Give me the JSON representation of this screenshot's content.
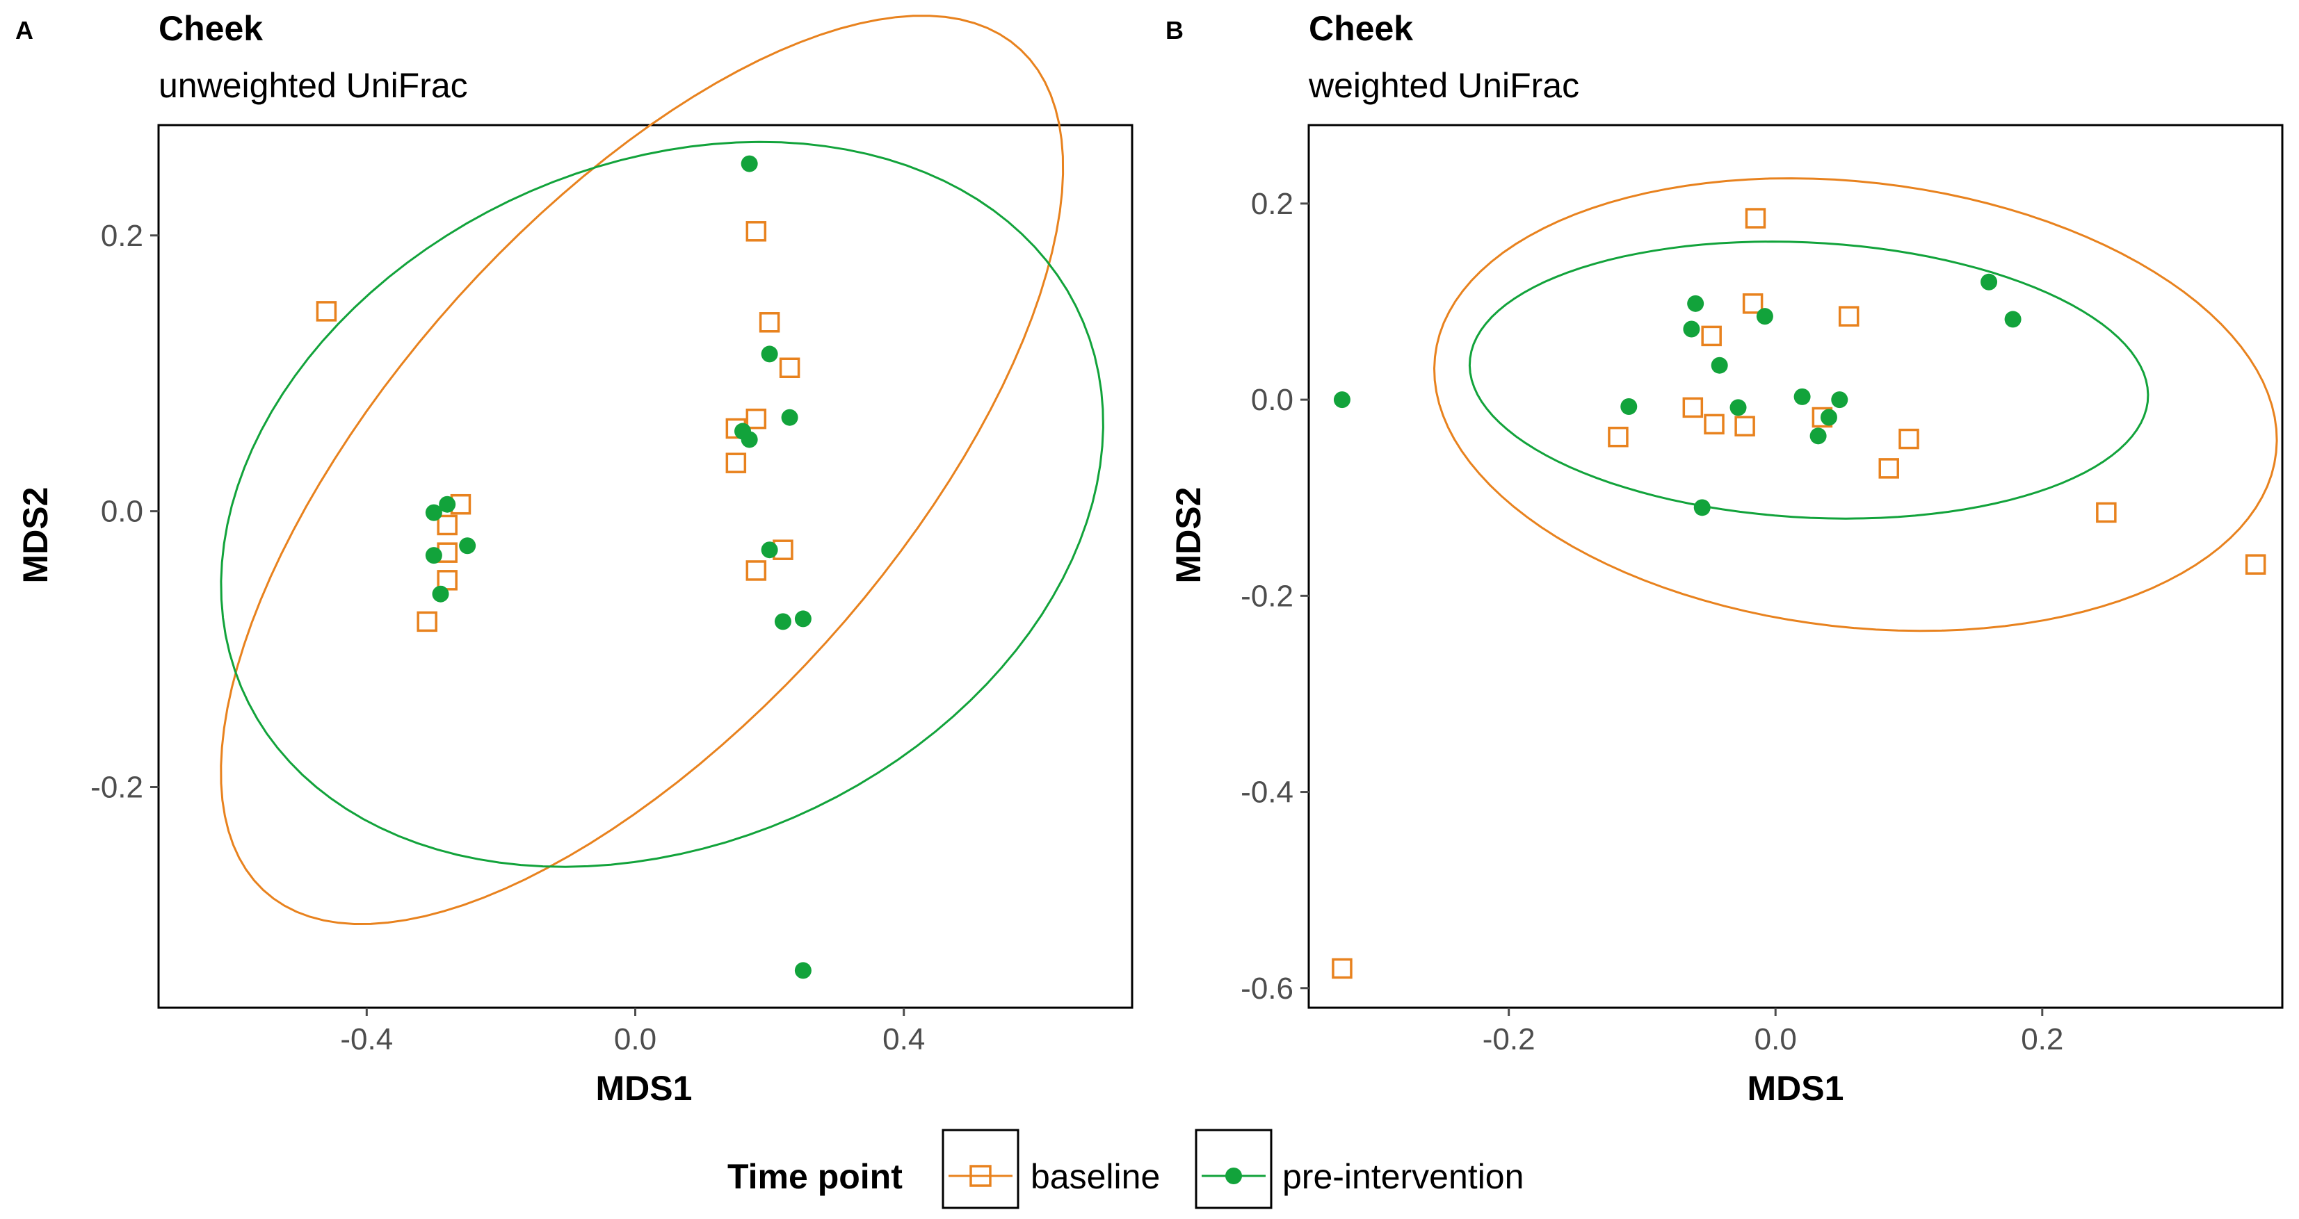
{
  "colors": {
    "baseline": "#E8821E",
    "pre_intervention": "#12A33B",
    "axis": "#000000",
    "tick_text": "#4D4D4D"
  },
  "legend": {
    "title": "Time point",
    "items": [
      {
        "label": "baseline",
        "shape": "open-square",
        "color": "#E8821E"
      },
      {
        "label": "pre-intervention",
        "shape": "filled-circle",
        "color": "#12A33B"
      }
    ]
  },
  "chart_data": [
    {
      "panel_label": "A",
      "type": "scatter",
      "title": "Cheek",
      "subtitle": "unweighted UniFrac",
      "xlabel": "MDS1",
      "ylabel": "MDS2",
      "xlim": [
        -0.71,
        0.74
      ],
      "ylim": [
        -0.36,
        0.28
      ],
      "xticks": [
        -0.4,
        0.0,
        0.4
      ],
      "xtick_labels": [
        "-0.4",
        "0.0",
        "0.4"
      ],
      "yticks": [
        -0.2,
        0.0,
        0.2
      ],
      "ytick_labels": [
        "-0.2",
        "0.0",
        "0.2"
      ],
      "grid": false,
      "series": [
        {
          "name": "baseline",
          "marker": "open-square",
          "color": "#E8821E",
          "points": [
            [
              -0.46,
              0.145
            ],
            [
              -0.26,
              0.005
            ],
            [
              -0.28,
              -0.01
            ],
            [
              -0.28,
              -0.03
            ],
            [
              -0.28,
              -0.05
            ],
            [
              -0.31,
              -0.08
            ],
            [
              0.18,
              0.203
            ],
            [
              0.2,
              0.137
            ],
            [
              0.23,
              0.104
            ],
            [
              0.15,
              0.06
            ],
            [
              0.18,
              0.067
            ],
            [
              0.15,
              0.035
            ],
            [
              0.22,
              -0.028
            ],
            [
              0.18,
              -0.043
            ]
          ],
          "ellipse": {
            "center": [
              0.01,
              0.03
            ],
            "semi_axes": [
              0.67,
              0.23
            ],
            "angle_deg": 22
          }
        },
        {
          "name": "pre-intervention",
          "marker": "filled-circle",
          "color": "#12A33B",
          "points": [
            [
              0.17,
              0.252
            ],
            [
              0.2,
              0.114
            ],
            [
              0.23,
              0.068
            ],
            [
              0.16,
              0.058
            ],
            [
              0.17,
              0.052
            ],
            [
              0.2,
              -0.028
            ],
            [
              0.22,
              -0.08
            ],
            [
              0.25,
              -0.078
            ],
            [
              0.25,
              -0.333
            ],
            [
              -0.28,
              0.005
            ],
            [
              -0.3,
              -0.001
            ],
            [
              -0.25,
              -0.025
            ],
            [
              -0.3,
              -0.032
            ],
            [
              -0.29,
              -0.06
            ]
          ],
          "ellipse": {
            "center": [
              0.04,
              0.005
            ],
            "semi_axes": [
              0.66,
              0.255
            ],
            "angle_deg": 6
          }
        }
      ]
    },
    {
      "panel_label": "B",
      "type": "scatter",
      "title": "Cheek",
      "subtitle": "weighted UniFrac",
      "xlabel": "MDS1",
      "ylabel": "MDS2",
      "xlim": [
        -0.35,
        0.38
      ],
      "ylim": [
        -0.62,
        0.28
      ],
      "xticks": [
        -0.2,
        0.0,
        0.2
      ],
      "xtick_labels": [
        "-0.2",
        "0.0",
        "0.2"
      ],
      "yticks": [
        -0.6,
        -0.4,
        -0.2,
        0.0,
        0.2
      ],
      "ytick_labels": [
        "-0.6",
        "-0.4",
        "-0.2",
        "0.0",
        "0.2"
      ],
      "grid": false,
      "series": [
        {
          "name": "baseline",
          "marker": "open-square",
          "color": "#E8821E",
          "points": [
            [
              -0.015,
              0.185
            ],
            [
              -0.017,
              0.098
            ],
            [
              0.055,
              0.085
            ],
            [
              -0.048,
              0.065
            ],
            [
              -0.118,
              -0.038
            ],
            [
              -0.062,
              -0.008
            ],
            [
              -0.046,
              -0.025
            ],
            [
              -0.023,
              -0.027
            ],
            [
              0.035,
              -0.018
            ],
            [
              0.1,
              -0.04
            ],
            [
              0.085,
              -0.07
            ],
            [
              0.248,
              -0.115
            ],
            [
              0.36,
              -0.168
            ],
            [
              -0.325,
              -0.58
            ]
          ],
          "ellipse": {
            "center": [
              0.06,
              -0.005
            ],
            "semi_axes": [
              0.32,
              0.225
            ],
            "angle_deg": -13
          }
        },
        {
          "name": "pre-intervention",
          "marker": "filled-circle",
          "color": "#12A33B",
          "points": [
            [
              -0.325,
              0.0
            ],
            [
              -0.11,
              -0.007
            ],
            [
              -0.06,
              0.098
            ],
            [
              -0.063,
              0.072
            ],
            [
              -0.042,
              0.035
            ],
            [
              -0.008,
              0.085
            ],
            [
              -0.028,
              -0.008
            ],
            [
              0.02,
              0.003
            ],
            [
              0.048,
              0.0
            ],
            [
              0.032,
              -0.037
            ],
            [
              0.04,
              -0.018
            ],
            [
              0.16,
              0.12
            ],
            [
              0.178,
              0.082
            ],
            [
              -0.055,
              -0.11
            ]
          ],
          "ellipse": {
            "center": [
              0.025,
              0.02
            ],
            "semi_axes": [
              0.255,
              0.14
            ],
            "angle_deg": -5
          }
        }
      ]
    }
  ]
}
